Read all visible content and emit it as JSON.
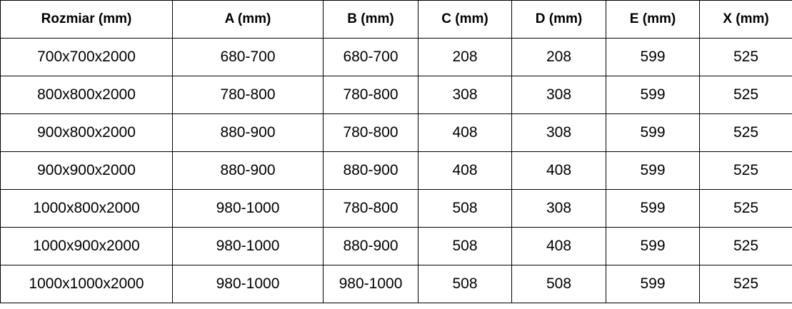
{
  "table": {
    "headers": [
      "Rozmiar (mm)",
      "A (mm)",
      "B (mm)",
      "C (mm)",
      "D (mm)",
      "E (mm)",
      "X (mm)"
    ],
    "rows": [
      [
        "700x700x2000",
        "680-700",
        "680-700",
        "208",
        "208",
        "599",
        "525"
      ],
      [
        "800x800x2000",
        "780-800",
        "780-800",
        "308",
        "308",
        "599",
        "525"
      ],
      [
        "900x800x2000",
        "880-900",
        "780-800",
        "408",
        "308",
        "599",
        "525"
      ],
      [
        "900x900x2000",
        "880-900",
        "880-900",
        "408",
        "408",
        "599",
        "525"
      ],
      [
        "1000x800x2000",
        "980-1000",
        "780-800",
        "508",
        "308",
        "599",
        "525"
      ],
      [
        "1000x900x2000",
        "980-1000",
        "880-900",
        "508",
        "408",
        "599",
        "525"
      ],
      [
        "1000x1000x2000",
        "980-1000",
        "980-1000",
        "508",
        "508",
        "599",
        "525"
      ]
    ]
  }
}
